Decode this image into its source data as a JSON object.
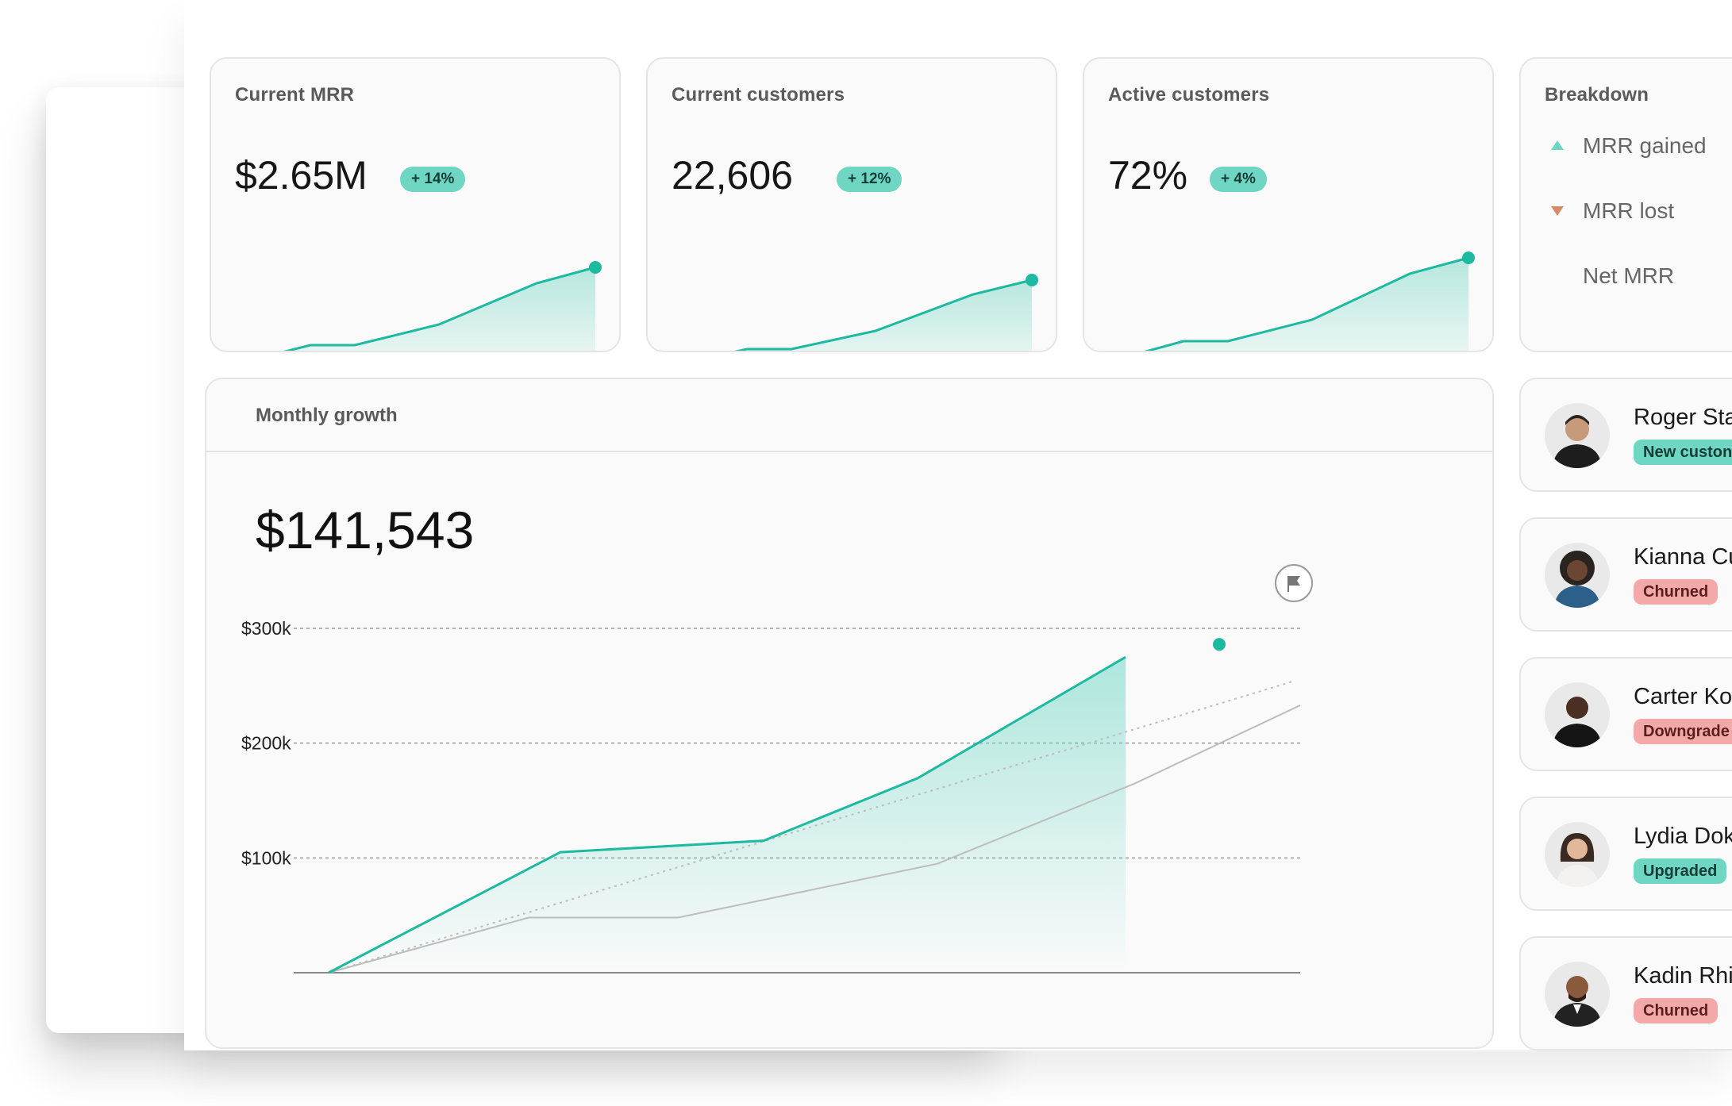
{
  "colors": {
    "accent": "#1db9a0",
    "badge_green": "#6fd6c4",
    "badge_red": "#f3a9a7",
    "mrr_lost": "#d8896a"
  },
  "metrics": [
    {
      "title": "Current MRR",
      "value": "$2.65M",
      "change": "+ 14%"
    },
    {
      "title": "Current customers",
      "value": "22,606",
      "change": "+ 12%"
    },
    {
      "title": "Active customers",
      "value": "72%",
      "change": "+ 4%"
    }
  ],
  "breakdown": {
    "title": "Breakdown",
    "items": [
      {
        "label": "MRR gained",
        "icon": "triangle-up-icon"
      },
      {
        "label": "MRR lost",
        "icon": "triangle-down-icon"
      },
      {
        "label": "Net MRR",
        "icon": ""
      }
    ]
  },
  "growth": {
    "title": "Monthly growth",
    "value": "$141,543",
    "chart_data": {
      "type": "line",
      "x": [
        0,
        1,
        2,
        3,
        4,
        5
      ],
      "series": [
        {
          "values": [
            0,
            105,
            115,
            195,
            275,
            275
          ]
        },
        {
          "values": [
            0,
            48,
            48,
            95,
            195,
            233
          ]
        },
        {
          "values": [
            0,
            null,
            null,
            null,
            null,
            272
          ]
        }
      ],
      "yticks": [
        "$100k",
        "$200k",
        "$300k"
      ],
      "ylim": [
        0,
        300
      ],
      "grid": true,
      "flag_icon": "flag-icon"
    }
  },
  "people": [
    {
      "name": "Roger Sta",
      "status": "New custon",
      "tone": "green"
    },
    {
      "name": "Kianna Cu",
      "status": "Churned",
      "tone": "red"
    },
    {
      "name": "Carter Ko",
      "status": "Downgrade",
      "tone": "red"
    },
    {
      "name": "Lydia Dok",
      "status": "Upgraded",
      "tone": "green"
    },
    {
      "name": "Kadin Rhi",
      "status": "Churned",
      "tone": "red"
    }
  ]
}
